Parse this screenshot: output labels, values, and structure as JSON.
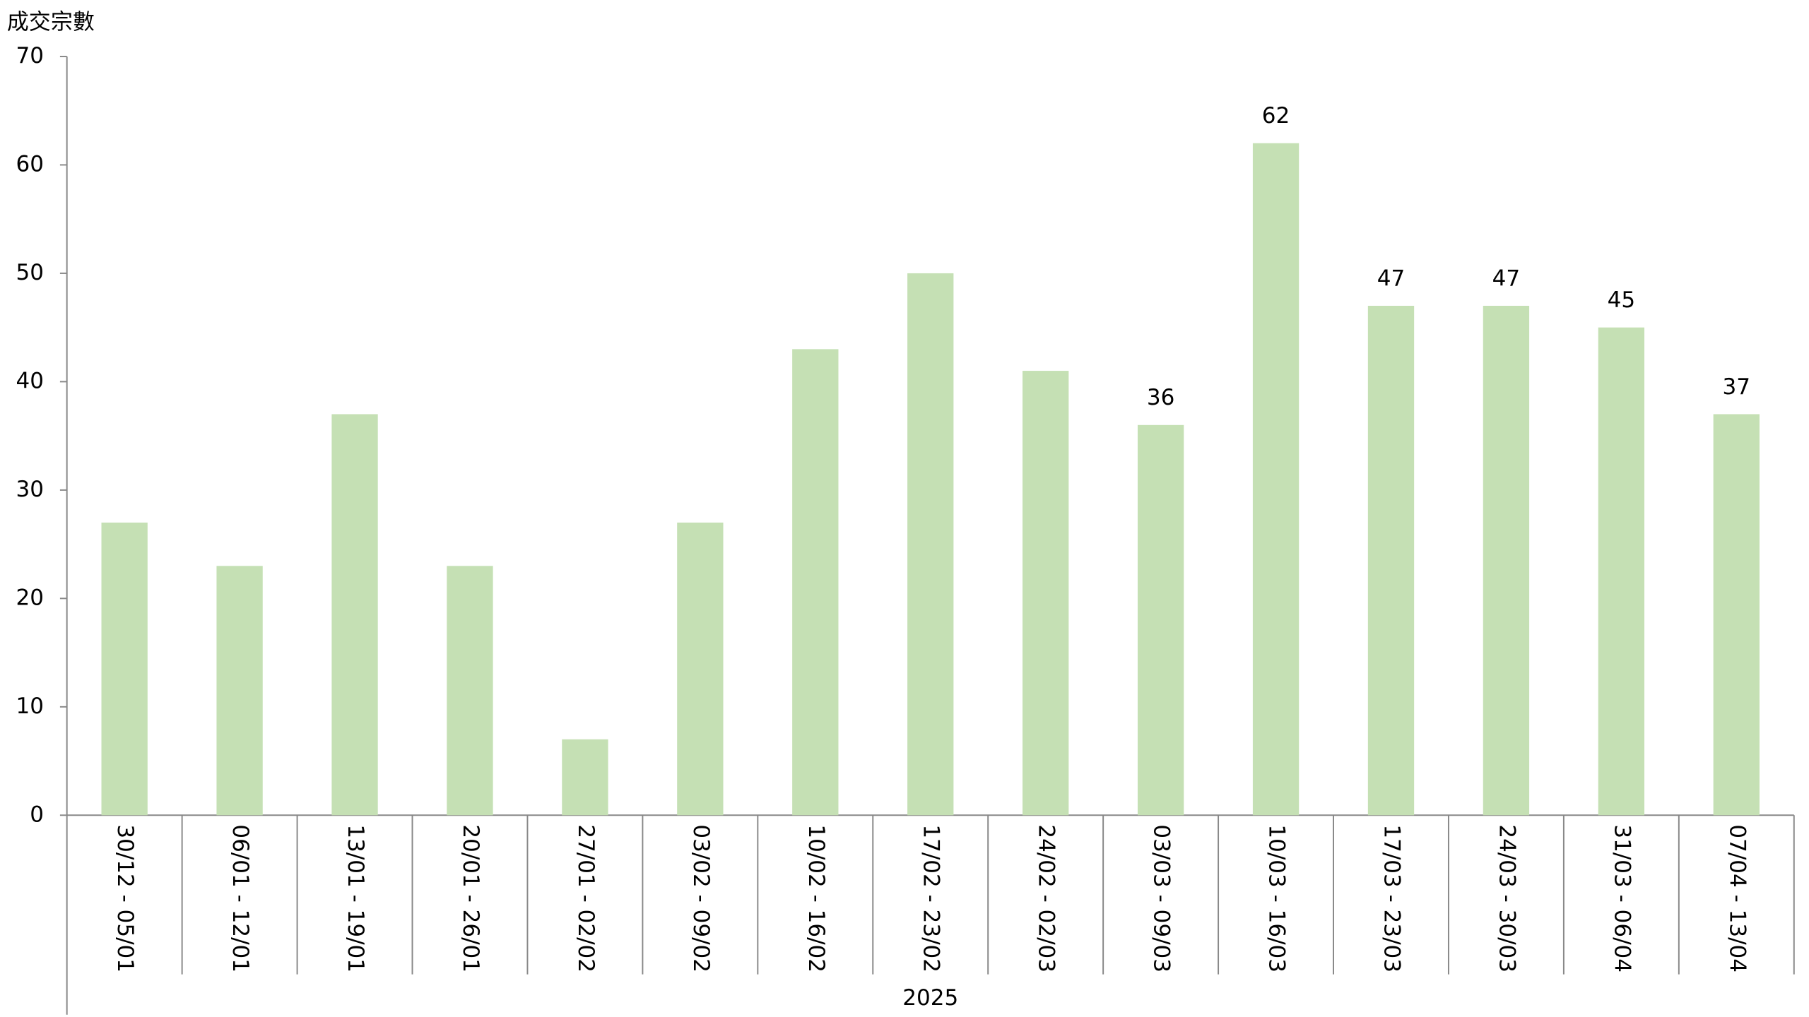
{
  "chart_data": {
    "type": "bar",
    "y_axis_title": "成交宗數",
    "group_label": "2025",
    "categories": [
      "30/12 - 05/01",
      "06/01 - 12/01",
      "13/01 - 19/01",
      "20/01 - 26/01",
      "27/01 - 02/02",
      "03/02 - 09/02",
      "10/02 - 16/02",
      "17/02 - 23/02",
      "24/02 - 02/03",
      "03/03 - 09/03",
      "10/03 - 16/03",
      "17/03 - 23/03",
      "24/03 - 30/03",
      "31/03 - 06/04",
      "07/04 - 13/04"
    ],
    "values": [
      27,
      23,
      37,
      23,
      7,
      27,
      43,
      50,
      41,
      36,
      62,
      47,
      47,
      45,
      37
    ],
    "value_labels": [
      null,
      null,
      null,
      null,
      null,
      null,
      null,
      null,
      null,
      "36",
      "62",
      "47",
      "47",
      "45",
      "37"
    ],
    "color": "#c5e0b4",
    "ylim": [
      0,
      70
    ],
    "yticks": [
      0,
      10,
      20,
      30,
      40,
      50,
      60,
      70
    ],
    "grid": false
  }
}
